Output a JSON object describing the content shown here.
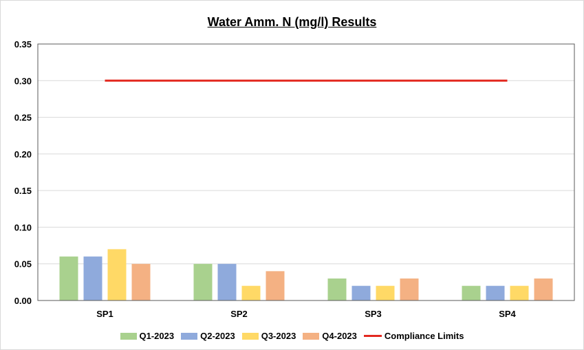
{
  "chart_data": {
    "type": "bar",
    "title": "Water Amm. N (mg/l) Results",
    "categories": [
      "SP1",
      "SP2",
      "SP3",
      "SP4"
    ],
    "series": [
      {
        "name": "Q1-2023",
        "color": "#a9d18e",
        "values": [
          0.06,
          0.05,
          0.03,
          0.02
        ]
      },
      {
        "name": "Q2-2023",
        "color": "#8faadc",
        "values": [
          0.06,
          0.05,
          0.02,
          0.02
        ]
      },
      {
        "name": "Q3-2023",
        "color": "#ffd966",
        "values": [
          0.07,
          0.02,
          0.02,
          0.02
        ]
      },
      {
        "name": "Q4-2023",
        "color": "#f4b183",
        "values": [
          0.05,
          0.04,
          0.03,
          0.03
        ]
      }
    ],
    "reference_line": {
      "name": "Compliance Limits",
      "value": 0.3,
      "color": "#e3281f"
    },
    "ylim": [
      0,
      0.35
    ],
    "yticks": [
      "0.00",
      "0.05",
      "0.10",
      "0.15",
      "0.20",
      "0.25",
      "0.30",
      "0.35"
    ],
    "grid": true,
    "legend_position": "bottom"
  }
}
